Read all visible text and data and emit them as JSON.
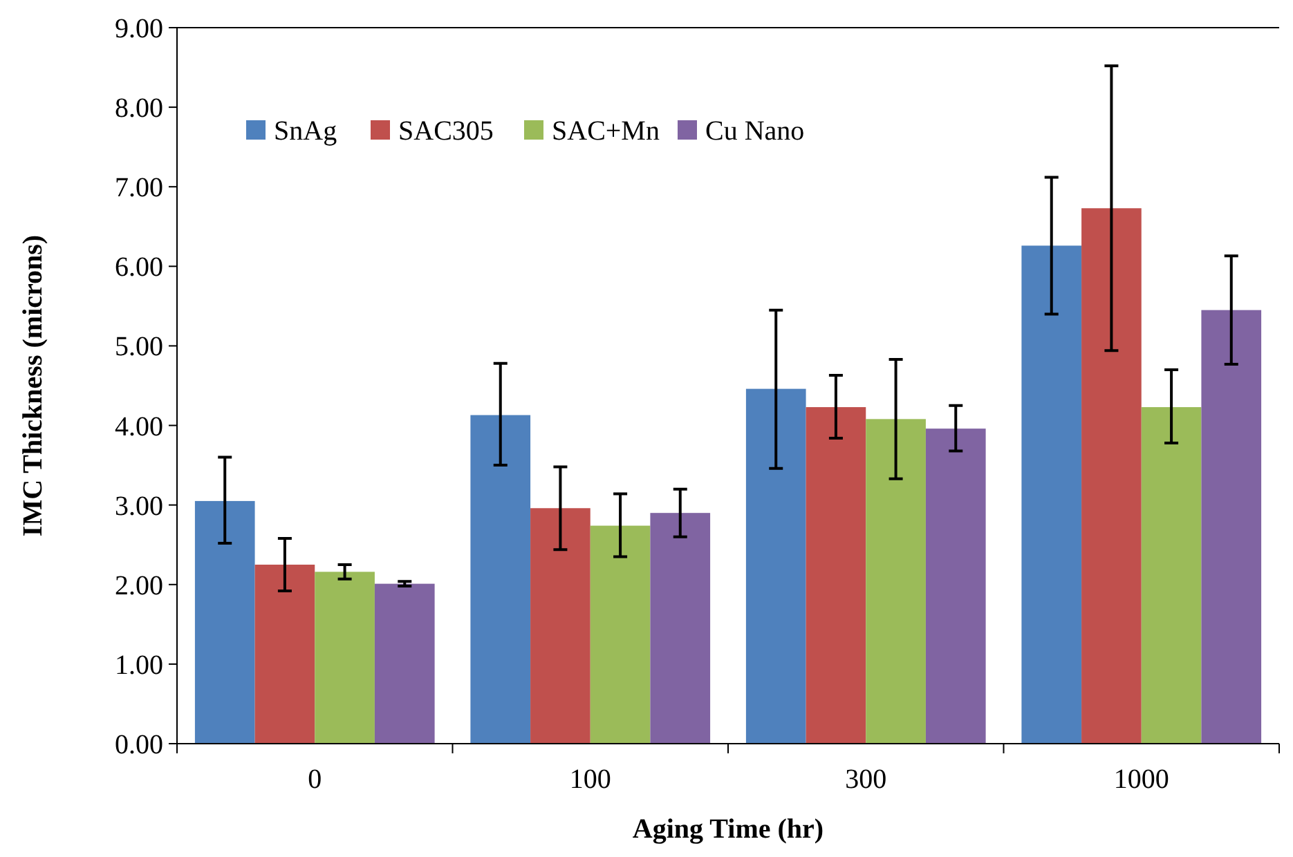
{
  "chart_data": {
    "type": "bar",
    "xlabel": "Aging Time (hr)",
    "ylabel": "IMC Thickness (microns)",
    "categories": [
      "0",
      "100",
      "300",
      "1000"
    ],
    "series": [
      {
        "name": "SnAg",
        "color": "#4f81bd",
        "values": [
          3.05,
          4.13,
          4.46,
          6.26
        ],
        "errors": [
          [
            2.52,
            3.6
          ],
          [
            3.5,
            4.78
          ],
          [
            3.46,
            5.45
          ],
          [
            5.4,
            7.12
          ]
        ]
      },
      {
        "name": "SAC305",
        "color": "#c0504d",
        "values": [
          2.25,
          2.96,
          4.23,
          6.73
        ],
        "errors": [
          [
            1.92,
            2.58
          ],
          [
            2.44,
            3.48
          ],
          [
            3.84,
            4.63
          ],
          [
            4.94,
            8.52
          ]
        ]
      },
      {
        "name": "SAC+Mn",
        "color": "#9bbb59",
        "values": [
          2.16,
          2.74,
          4.08,
          4.23
        ],
        "errors": [
          [
            2.07,
            2.25
          ],
          [
            2.35,
            3.14
          ],
          [
            3.33,
            4.83
          ],
          [
            3.78,
            4.7
          ]
        ]
      },
      {
        "name": "Cu Nano",
        "color": "#8064a2",
        "values": [
          2.01,
          2.9,
          3.96,
          5.45
        ],
        "errors": [
          [
            1.98,
            2.04
          ],
          [
            2.6,
            3.2
          ],
          [
            3.68,
            4.25
          ],
          [
            4.77,
            6.13
          ]
        ]
      }
    ],
    "ylim": [
      0,
      9
    ],
    "yticks": [
      {
        "value": 0,
        "label": "0.00"
      },
      {
        "value": 1,
        "label": "1.00"
      },
      {
        "value": 2,
        "label": "2.00"
      },
      {
        "value": 3,
        "label": "3.00"
      },
      {
        "value": 4,
        "label": "4.00"
      },
      {
        "value": 5,
        "label": "5.00"
      },
      {
        "value": 6,
        "label": "6.00"
      },
      {
        "value": 7,
        "label": "7.00"
      },
      {
        "value": 8,
        "label": "8.00"
      },
      {
        "value": 9,
        "label": "9.00"
      }
    ],
    "legend": "top left",
    "grid": false
  }
}
